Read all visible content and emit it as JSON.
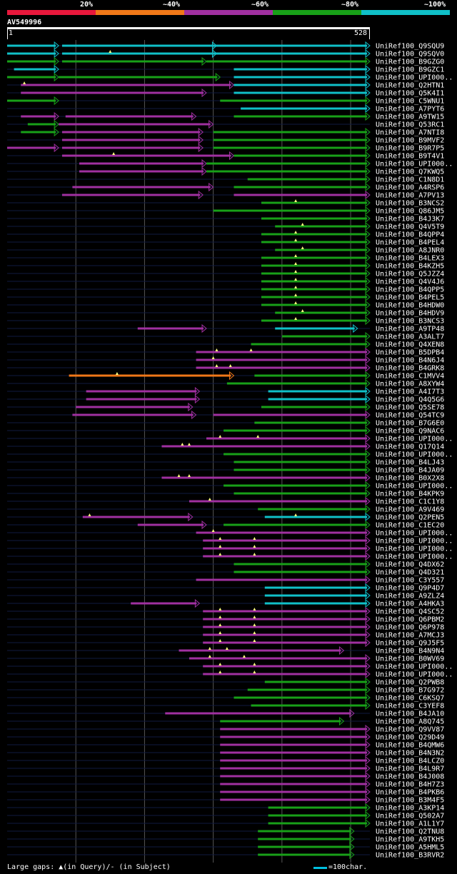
{
  "legend": {
    "labels": [
      "20%",
      "~40%",
      "~60%",
      "~80%",
      "~100%"
    ],
    "colors": [
      "#e8183c",
      "#f07818",
      "#a030a0",
      "#18a018",
      "#10c0c8"
    ]
  },
  "query": {
    "title": "AV549996",
    "start": "1",
    "end": "528",
    "length": 528
  },
  "footer": {
    "gaps_text": "Large gaps: ▲(in Query)/- (in Subject)",
    "scale_text": "=100char."
  },
  "colors": {
    "grid": "#2a2a2a",
    "background": "#000000",
    "cyan": "#10c0c8",
    "magenta": "#a030a0",
    "green": "#18a018",
    "orange": "#f07818"
  },
  "hits": [
    {
      "name": "UniRef100_Q9SQU9",
      "segs": [
        [
          0,
          75,
          "c"
        ],
        [
          80,
          305,
          "c"
        ],
        [
          300,
          528,
          "c"
        ]
      ],
      "gaps": []
    },
    {
      "name": "UniRef100_Q9SQV0",
      "segs": [
        [
          0,
          75,
          "c"
        ],
        [
          80,
          305,
          "c"
        ],
        [
          300,
          528,
          "c"
        ]
      ],
      "gaps": [
        150
      ]
    },
    {
      "name": "UniRef100_B9GZG0",
      "segs": [
        [
          0,
          75,
          "g"
        ],
        [
          80,
          290,
          "g"
        ],
        [
          290,
          528,
          "g"
        ]
      ],
      "gaps": []
    },
    {
      "name": "UniRef100_B9GZC1",
      "segs": [
        [
          10,
          75,
          "c"
        ],
        [
          330,
          528,
          "c"
        ]
      ],
      "gaps": []
    },
    {
      "name": "UniRef100_UPI000..",
      "segs": [
        [
          0,
          75,
          "g"
        ],
        [
          75,
          310,
          "g"
        ],
        [
          330,
          528,
          "c"
        ]
      ],
      "gaps": []
    },
    {
      "name": "UniRef100_Q2HTN1",
      "segs": [
        [
          20,
          330,
          "m"
        ],
        [
          330,
          528,
          "c"
        ]
      ],
      "gaps": [
        25
      ]
    },
    {
      "name": "UniRef100_Q5K4I1",
      "segs": [
        [
          20,
          290,
          "m"
        ],
        [
          330,
          528,
          "c"
        ]
      ],
      "gaps": []
    },
    {
      "name": "UniRef100_C5WNU1",
      "segs": [
        [
          0,
          75,
          "g"
        ],
        [
          310,
          528,
          "g"
        ]
      ],
      "gaps": []
    },
    {
      "name": "UniRef100_A7PYT6",
      "segs": [
        [
          340,
          528,
          "c"
        ]
      ],
      "gaps": []
    },
    {
      "name": "UniRef100_A9TW15",
      "segs": [
        [
          20,
          75,
          "m"
        ],
        [
          85,
          275,
          "m"
        ],
        [
          330,
          528,
          "g"
        ]
      ],
      "gaps": []
    },
    {
      "name": "UniRef100_Q53RC1",
      "segs": [
        [
          30,
          75,
          "g"
        ],
        [
          75,
          300,
          "m"
        ]
      ],
      "gaps": []
    },
    {
      "name": "UniRef100_A7NTI8",
      "segs": [
        [
          20,
          75,
          "g"
        ],
        [
          80,
          285,
          "m"
        ],
        [
          300,
          528,
          "g"
        ]
      ],
      "gaps": []
    },
    {
      "name": "UniRef100_B9MVF2",
      "segs": [
        [
          80,
          285,
          "m"
        ],
        [
          300,
          528,
          "g"
        ]
      ],
      "gaps": []
    },
    {
      "name": "UniRef100_B9R7P5",
      "segs": [
        [
          0,
          75,
          "m"
        ],
        [
          80,
          285,
          "m"
        ],
        [
          300,
          528,
          "g"
        ]
      ],
      "gaps": []
    },
    {
      "name": "UniRef100_B9T4V1",
      "segs": [
        [
          80,
          330,
          "m"
        ],
        [
          330,
          528,
          "g"
        ]
      ],
      "gaps": [
        155
      ]
    },
    {
      "name": "UniRef100_UPI000..",
      "segs": [
        [
          105,
          290,
          "m"
        ],
        [
          290,
          528,
          "g"
        ]
      ],
      "gaps": []
    },
    {
      "name": "UniRef100_Q7KWQ5",
      "segs": [
        [
          105,
          290,
          "m"
        ],
        [
          290,
          528,
          "g"
        ]
      ],
      "gaps": []
    },
    {
      "name": "UniRef100_C1N8D1",
      "segs": [
        [
          350,
          528,
          "g"
        ]
      ],
      "gaps": []
    },
    {
      "name": "UniRef100_A4RSP6",
      "segs": [
        [
          95,
          300,
          "m"
        ],
        [
          330,
          528,
          "g"
        ]
      ],
      "gaps": []
    },
    {
      "name": "UniRef100_A7PV13",
      "segs": [
        [
          80,
          285,
          "m"
        ],
        [
          330,
          528,
          "m"
        ]
      ],
      "gaps": []
    },
    {
      "name": "UniRef100_B3NCS2",
      "segs": [
        [
          370,
          528,
          "g"
        ]
      ],
      "gaps": [
        420
      ]
    },
    {
      "name": "UniRef100_Q86JM5",
      "segs": [
        [
          300,
          528,
          "g"
        ]
      ],
      "gaps": []
    },
    {
      "name": "UniRef100_B4J3K7",
      "segs": [
        [
          370,
          528,
          "g"
        ]
      ],
      "gaps": []
    },
    {
      "name": "UniRef100_Q4V5T9",
      "segs": [
        [
          390,
          528,
          "g"
        ]
      ],
      "gaps": [
        430
      ]
    },
    {
      "name": "UniRef100_B4QPP4",
      "segs": [
        [
          370,
          528,
          "g"
        ]
      ],
      "gaps": [
        420
      ]
    },
    {
      "name": "UniRef100_B4PEL4",
      "segs": [
        [
          370,
          528,
          "g"
        ]
      ],
      "gaps": [
        420
      ]
    },
    {
      "name": "UniRef100_A8JNR0",
      "segs": [
        [
          390,
          528,
          "g"
        ]
      ],
      "gaps": [
        430
      ]
    },
    {
      "name": "UniRef100_B4LEX3",
      "segs": [
        [
          370,
          528,
          "g"
        ]
      ],
      "gaps": [
        420
      ]
    },
    {
      "name": "UniRef100_B4KZH5",
      "segs": [
        [
          370,
          528,
          "g"
        ]
      ],
      "gaps": [
        420
      ]
    },
    {
      "name": "UniRef100_Q5JZZ4",
      "segs": [
        [
          370,
          528,
          "g"
        ]
      ],
      "gaps": [
        420
      ]
    },
    {
      "name": "UniRef100_Q4V4J6",
      "segs": [
        [
          370,
          528,
          "g"
        ]
      ],
      "gaps": [
        420
      ]
    },
    {
      "name": "UniRef100_B4QPP5",
      "segs": [
        [
          370,
          528,
          "g"
        ]
      ],
      "gaps": [
        420
      ]
    },
    {
      "name": "UniRef100_B4PEL5",
      "segs": [
        [
          370,
          528,
          "g"
        ]
      ],
      "gaps": [
        420
      ]
    },
    {
      "name": "UniRef100_B4HDW0",
      "segs": [
        [
          370,
          528,
          "g"
        ]
      ],
      "gaps": [
        420
      ]
    },
    {
      "name": "UniRef100_B4HDV9",
      "segs": [
        [
          390,
          528,
          "g"
        ]
      ],
      "gaps": [
        430
      ]
    },
    {
      "name": "UniRef100_B3NCS3",
      "segs": [
        [
          370,
          528,
          "g"
        ]
      ],
      "gaps": [
        420
      ]
    },
    {
      "name": "UniRef100_A9TP48",
      "segs": [
        [
          190,
          290,
          "m"
        ],
        [
          390,
          510,
          "c"
        ]
      ],
      "gaps": []
    },
    {
      "name": "UniRef100_A3ALT7",
      "segs": [
        [
          400,
          528,
          "g"
        ]
      ],
      "gaps": []
    },
    {
      "name": "UniRef100_Q4XEN8",
      "segs": [
        [
          355,
          528,
          "g"
        ]
      ],
      "gaps": []
    },
    {
      "name": "UniRef100_B5DPB4",
      "segs": [
        [
          275,
          528,
          "m"
        ]
      ],
      "gaps": [
        305,
        355
      ]
    },
    {
      "name": "UniRef100_B4N6J4",
      "segs": [
        [
          275,
          528,
          "m"
        ]
      ],
      "gaps": [
        300
      ]
    },
    {
      "name": "UniRef100_B4GRK8",
      "segs": [
        [
          275,
          528,
          "m"
        ]
      ],
      "gaps": [
        305,
        325
      ]
    },
    {
      "name": "UniRef100_C1MVV4",
      "segs": [
        [
          90,
          330,
          "o"
        ],
        [
          360,
          528,
          "g"
        ]
      ],
      "gaps": [
        160
      ]
    },
    {
      "name": "UniRef100_A8XYW4",
      "segs": [
        [
          320,
          528,
          "g"
        ]
      ],
      "gaps": []
    },
    {
      "name": "UniRef100_A4I7T3",
      "segs": [
        [
          115,
          280,
          "m"
        ],
        [
          380,
          528,
          "c"
        ]
      ],
      "gaps": []
    },
    {
      "name": "UniRef100_Q4Q5G6",
      "segs": [
        [
          115,
          280,
          "m"
        ],
        [
          380,
          528,
          "c"
        ]
      ],
      "gaps": []
    },
    {
      "name": "UniRef100_Q5SE78",
      "segs": [
        [
          100,
          270,
          "m"
        ],
        [
          370,
          528,
          "g"
        ]
      ],
      "gaps": []
    },
    {
      "name": "UniRef100_Q54TC9",
      "segs": [
        [
          95,
          275,
          "m"
        ],
        [
          300,
          528,
          "m"
        ]
      ],
      "gaps": []
    },
    {
      "name": "UniRef100_B7G6E0",
      "segs": [
        [
          360,
          528,
          "g"
        ]
      ],
      "gaps": []
    },
    {
      "name": "UniRef100_Q9NAC6",
      "segs": [
        [
          315,
          528,
          "g"
        ]
      ],
      "gaps": []
    },
    {
      "name": "UniRef100_UPI000..",
      "segs": [
        [
          290,
          528,
          "m"
        ]
      ],
      "gaps": [
        310,
        365
      ]
    },
    {
      "name": "UniRef100_Q17Q14",
      "segs": [
        [
          225,
          528,
          "m"
        ]
      ],
      "gaps": [
        255,
        265
      ]
    },
    {
      "name": "UniRef100_UPI000..",
      "segs": [
        [
          315,
          528,
          "g"
        ]
      ],
      "gaps": []
    },
    {
      "name": "UniRef100_B4LJ43",
      "segs": [
        [
          330,
          528,
          "g"
        ]
      ],
      "gaps": []
    },
    {
      "name": "UniRef100_B4JA09",
      "segs": [
        [
          330,
          528,
          "g"
        ]
      ],
      "gaps": []
    },
    {
      "name": "UniRef100_B0X2X8",
      "segs": [
        [
          225,
          528,
          "m"
        ]
      ],
      "gaps": [
        250,
        265
      ]
    },
    {
      "name": "UniRef100_UPI000..",
      "segs": [
        [
          315,
          528,
          "g"
        ]
      ],
      "gaps": []
    },
    {
      "name": "UniRef100_B4KPK9",
      "segs": [
        [
          330,
          528,
          "g"
        ]
      ],
      "gaps": []
    },
    {
      "name": "UniRef100_C1C1Y8",
      "segs": [
        [
          265,
          528,
          "m"
        ]
      ],
      "gaps": [
        295
      ]
    },
    {
      "name": "UniRef100_A9V469",
      "segs": [
        [
          365,
          528,
          "g"
        ]
      ],
      "gaps": []
    },
    {
      "name": "UniRef100_Q2PEN5",
      "segs": [
        [
          110,
          270,
          "m"
        ],
        [
          375,
          528,
          "c"
        ]
      ],
      "gaps": [
        120,
        420
      ]
    },
    {
      "name": "UniRef100_C1EC20",
      "segs": [
        [
          190,
          290,
          "m"
        ],
        [
          315,
          528,
          "g"
        ]
      ],
      "gaps": []
    },
    {
      "name": "UniRef100_UPI000..",
      "segs": [
        [
          275,
          528,
          "m"
        ]
      ],
      "gaps": [
        300
      ]
    },
    {
      "name": "UniRef100_UPI000..",
      "segs": [
        [
          285,
          528,
          "m"
        ]
      ],
      "gaps": [
        310,
        360
      ]
    },
    {
      "name": "UniRef100_UPI000..",
      "segs": [
        [
          285,
          528,
          "m"
        ]
      ],
      "gaps": [
        310,
        360
      ]
    },
    {
      "name": "UniRef100_UPI000..",
      "segs": [
        [
          285,
          528,
          "m"
        ]
      ],
      "gaps": [
        310,
        360
      ]
    },
    {
      "name": "UniRef100_Q4DX62",
      "segs": [
        [
          330,
          528,
          "g"
        ]
      ],
      "gaps": []
    },
    {
      "name": "UniRef100_Q4D321",
      "segs": [
        [
          330,
          528,
          "g"
        ]
      ],
      "gaps": []
    },
    {
      "name": "UniRef100_C3Y557",
      "segs": [
        [
          275,
          528,
          "m"
        ]
      ],
      "gaps": []
    },
    {
      "name": "UniRef100_Q9P4D7",
      "segs": [
        [
          375,
          528,
          "c"
        ]
      ],
      "gaps": []
    },
    {
      "name": "UniRef100_A9ZLZ4",
      "segs": [
        [
          375,
          528,
          "c"
        ]
      ],
      "gaps": []
    },
    {
      "name": "UniRef100_A4HKA3",
      "segs": [
        [
          180,
          280,
          "m"
        ],
        [
          375,
          528,
          "c"
        ]
      ],
      "gaps": []
    },
    {
      "name": "UniRef100_Q4SC52",
      "segs": [
        [
          285,
          528,
          "m"
        ]
      ],
      "gaps": [
        310,
        360
      ]
    },
    {
      "name": "UniRef100_Q6PBM2",
      "segs": [
        [
          285,
          528,
          "m"
        ]
      ],
      "gaps": [
        310,
        360
      ]
    },
    {
      "name": "UniRef100_Q6P978",
      "segs": [
        [
          285,
          528,
          "m"
        ]
      ],
      "gaps": [
        310,
        360
      ]
    },
    {
      "name": "UniRef100_A7MCJ3",
      "segs": [
        [
          285,
          528,
          "m"
        ]
      ],
      "gaps": [
        310,
        360
      ]
    },
    {
      "name": "UniRef100_Q9J5F5",
      "segs": [
        [
          285,
          528,
          "m"
        ]
      ],
      "gaps": [
        310,
        360
      ]
    },
    {
      "name": "UniRef100_B4N9N4",
      "segs": [
        [
          250,
          490,
          "m"
        ]
      ],
      "gaps": [
        295,
        320
      ]
    },
    {
      "name": "UniRef100_B0WV69",
      "segs": [
        [
          265,
          528,
          "m"
        ]
      ],
      "gaps": [
        295,
        345
      ]
    },
    {
      "name": "UniRef100_UPI000..",
      "segs": [
        [
          285,
          528,
          "m"
        ]
      ],
      "gaps": [
        310,
        360
      ]
    },
    {
      "name": "UniRef100_UPI000..",
      "segs": [
        [
          285,
          528,
          "m"
        ]
      ],
      "gaps": [
        310,
        360
      ]
    },
    {
      "name": "UniRef100_Q2PWB8",
      "segs": [
        [
          375,
          528,
          "g"
        ]
      ],
      "gaps": []
    },
    {
      "name": "UniRef100_B7G972",
      "segs": [
        [
          350,
          528,
          "g"
        ]
      ],
      "gaps": []
    },
    {
      "name": "UniRef100_C6KSQ7",
      "segs": [
        [
          330,
          528,
          "g"
        ]
      ],
      "gaps": []
    },
    {
      "name": "UniRef100_C3YEF8",
      "segs": [
        [
          355,
          528,
          "g"
        ]
      ],
      "gaps": []
    },
    {
      "name": "UniRef100_B4JA10",
      "segs": [
        [
          230,
          505,
          "m"
        ]
      ],
      "gaps": []
    },
    {
      "name": "UniRef100_A8Q745",
      "segs": [
        [
          310,
          490,
          "g"
        ]
      ],
      "gaps": []
    },
    {
      "name": "UniRef100_Q9VV87",
      "segs": [
        [
          310,
          528,
          "m"
        ]
      ],
      "gaps": []
    },
    {
      "name": "UniRef100_Q29D49",
      "segs": [
        [
          310,
          528,
          "m"
        ]
      ],
      "gaps": []
    },
    {
      "name": "UniRef100_B4QMW6",
      "segs": [
        [
          310,
          528,
          "m"
        ]
      ],
      "gaps": []
    },
    {
      "name": "UniRef100_B4N3N2",
      "segs": [
        [
          310,
          528,
          "m"
        ]
      ],
      "gaps": []
    },
    {
      "name": "UniRef100_B4LCZ0",
      "segs": [
        [
          310,
          528,
          "m"
        ]
      ],
      "gaps": []
    },
    {
      "name": "UniRef100_B4L9R7",
      "segs": [
        [
          310,
          528,
          "m"
        ]
      ],
      "gaps": []
    },
    {
      "name": "UniRef100_B4J008",
      "segs": [
        [
          310,
          528,
          "m"
        ]
      ],
      "gaps": []
    },
    {
      "name": "UniRef100_B4H7Z3",
      "segs": [
        [
          310,
          528,
          "m"
        ]
      ],
      "gaps": []
    },
    {
      "name": "UniRef100_B4PKB6",
      "segs": [
        [
          310,
          528,
          "m"
        ]
      ],
      "gaps": []
    },
    {
      "name": "UniRef100_B3M4F5",
      "segs": [
        [
          310,
          528,
          "m"
        ]
      ],
      "gaps": []
    },
    {
      "name": "UniRef100_A3KP14",
      "segs": [
        [
          380,
          528,
          "g"
        ]
      ],
      "gaps": []
    },
    {
      "name": "UniRef100_Q502A7",
      "segs": [
        [
          380,
          528,
          "g"
        ]
      ],
      "gaps": []
    },
    {
      "name": "UniRef100_A1L1Y7",
      "segs": [
        [
          380,
          528,
          "g"
        ]
      ],
      "gaps": []
    },
    {
      "name": "UniRef100_Q2TNU8",
      "segs": [
        [
          365,
          505,
          "g"
        ]
      ],
      "gaps": []
    },
    {
      "name": "UniRef100_A9TKH5",
      "segs": [
        [
          365,
          505,
          "g"
        ]
      ],
      "gaps": []
    },
    {
      "name": "UniRef100_A5HML5",
      "segs": [
        [
          365,
          505,
          "g"
        ]
      ],
      "gaps": []
    },
    {
      "name": "UniRef100_B3RVR2",
      "segs": [
        [
          365,
          505,
          "g"
        ]
      ],
      "gaps": []
    }
  ]
}
